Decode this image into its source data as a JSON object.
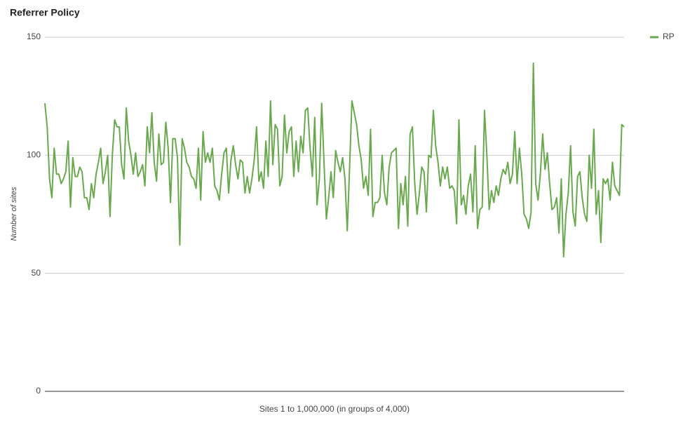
{
  "chart_data": {
    "type": "line",
    "title": "Referrer Policy",
    "xlabel": "Sites 1 to 1,000,000 (in groups of 4,000)",
    "ylabel": "Number of sites",
    "ylim": [
      0,
      150
    ],
    "yticks": [
      0,
      50,
      100,
      150
    ],
    "grid": true,
    "legend": "top-right",
    "series": [
      {
        "name": "RP",
        "color": "#6aa84f",
        "values": [
          122,
          112,
          90,
          82,
          103,
          92,
          92,
          88,
          90,
          93,
          106,
          78,
          99,
          91,
          91,
          95,
          93,
          82,
          82,
          77,
          88,
          82,
          92,
          97,
          103,
          88,
          93,
          100,
          74,
          100,
          115,
          112,
          112,
          96,
          90,
          120,
          106,
          100,
          92,
          101,
          91,
          93,
          96,
          87,
          112,
          101,
          118,
          97,
          89,
          109,
          96,
          97,
          114,
          103,
          80,
          107,
          107,
          99,
          62,
          107,
          103,
          97,
          95,
          91,
          90,
          86,
          103,
          81,
          110,
          97,
          101,
          97,
          103,
          87,
          85,
          81,
          92,
          101,
          103,
          84,
          98,
          104,
          96,
          90,
          98,
          97,
          84,
          91,
          84,
          90,
          98,
          112,
          89,
          93,
          86,
          106,
          91,
          123,
          96,
          113,
          111,
          87,
          91,
          117,
          101,
          110,
          112,
          91,
          106,
          93,
          108,
          101,
          119,
          120,
          103,
          91,
          116,
          79,
          90,
          122,
          97,
          73,
          82,
          93,
          82,
          102,
          97,
          93,
          99,
          90,
          68,
          95,
          123,
          118,
          113,
          104,
          98,
          86,
          91,
          83,
          111,
          74,
          80,
          80,
          82,
          100,
          84,
          79,
          95,
          101,
          102,
          103,
          69,
          88,
          79,
          91,
          70,
          109,
          112,
          88,
          75,
          84,
          95,
          93,
          76,
          100,
          99,
          119,
          104,
          97,
          87,
          95,
          90,
          95,
          86,
          87,
          85,
          71,
          115,
          79,
          83,
          75,
          87,
          92,
          76,
          104,
          69,
          77,
          78,
          119,
          100,
          77,
          85,
          80,
          87,
          83,
          90,
          94,
          92,
          97,
          88,
          92,
          110,
          88,
          103,
          92,
          75,
          73,
          69,
          76,
          139,
          88,
          81,
          92,
          109,
          94,
          101,
          88,
          77,
          78,
          82,
          67,
          90,
          57,
          75,
          84,
          104,
          76,
          70,
          91,
          93,
          82,
          75,
          72,
          100,
          86,
          111,
          75,
          85,
          63,
          90,
          88,
          90,
          81,
          97,
          87,
          85,
          83,
          113,
          112
        ]
      }
    ]
  }
}
